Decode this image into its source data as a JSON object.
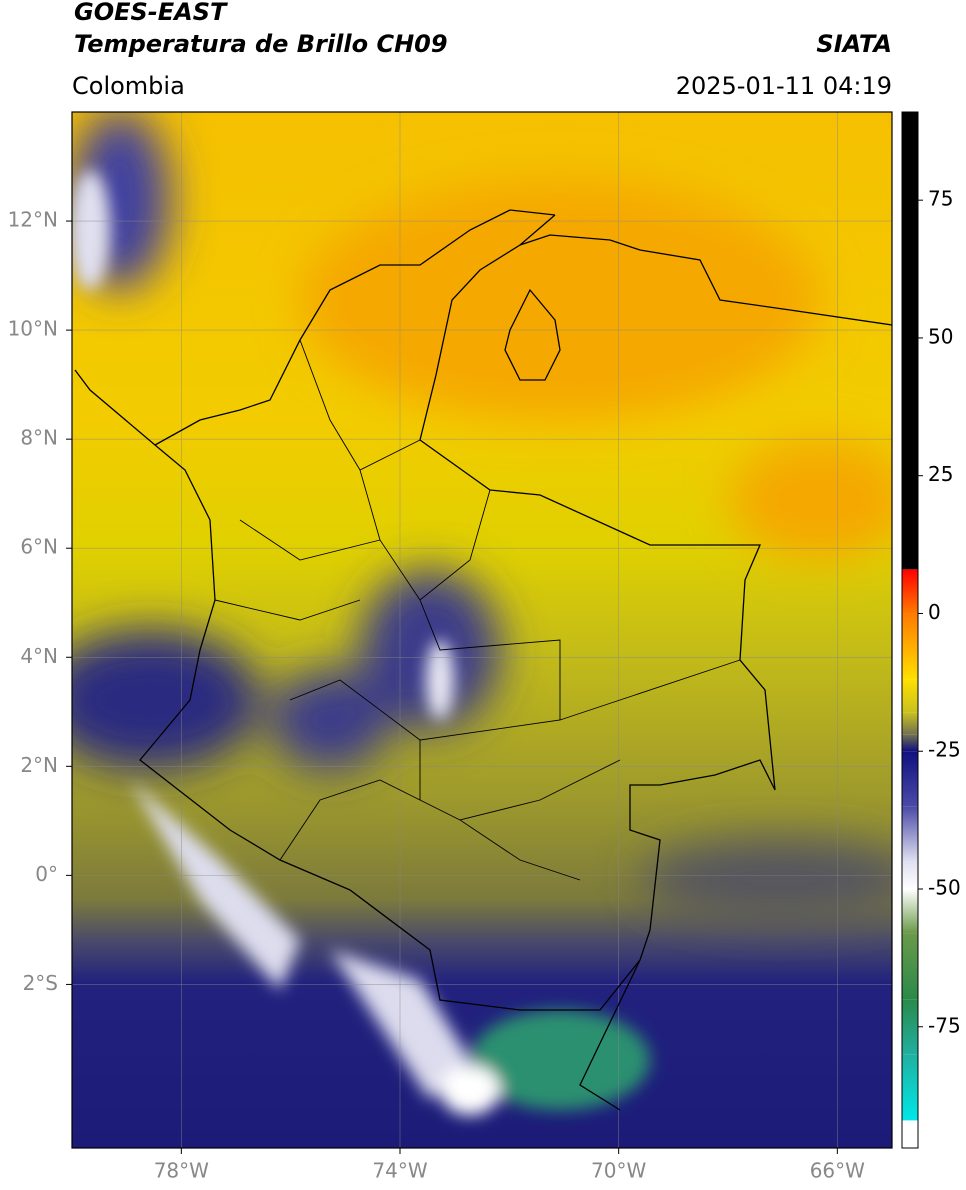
{
  "header": {
    "title_line1": "GOES-EAST",
    "title_line2": "Temperatura de Brillo CH09",
    "source": "SIATA",
    "region": "Colombia",
    "datetime": "2025-01-11 04:19"
  },
  "map": {
    "xlim": [
      -80,
      -65
    ],
    "ylim": [
      -5,
      14
    ],
    "grid": true,
    "xticks": [
      {
        "value": -78,
        "label": "78°W"
      },
      {
        "value": -74,
        "label": "74°W"
      },
      {
        "value": -70,
        "label": "70°W"
      },
      {
        "value": -66,
        "label": "66°W"
      }
    ],
    "yticks": [
      {
        "value": 12,
        "label": "12°N"
      },
      {
        "value": 10,
        "label": "10°N"
      },
      {
        "value": 8,
        "label": "8°N"
      },
      {
        "value": 6,
        "label": "6°N"
      },
      {
        "value": 4,
        "label": "4°N"
      },
      {
        "value": 2,
        "label": "2°N"
      },
      {
        "value": 0,
        "label": "0°"
      },
      {
        "value": -2,
        "label": "2°S"
      }
    ]
  },
  "colorbar": {
    "lim": [
      -97,
      91
    ],
    "ticks": [
      75,
      50,
      25,
      0,
      -25,
      -50,
      -75
    ],
    "colormap": [
      {
        "value": 91,
        "color": "#000000"
      },
      {
        "value": 8,
        "color": "#000000"
      },
      {
        "value": 8,
        "color": "#ff0000"
      },
      {
        "value": 0,
        "color": "#ff7a00"
      },
      {
        "value": -12,
        "color": "#ffe000"
      },
      {
        "value": -18,
        "color": "#c8c020"
      },
      {
        "value": -22,
        "color": "#707050"
      },
      {
        "value": -25,
        "color": "#101080"
      },
      {
        "value": -35,
        "color": "#4a4aa8"
      },
      {
        "value": -45,
        "color": "#e0e0f0"
      },
      {
        "value": -50,
        "color": "#ffffff"
      },
      {
        "value": -58,
        "color": "#6a9a4a"
      },
      {
        "value": -70,
        "color": "#2a8a4a"
      },
      {
        "value": -80,
        "color": "#20b0a0"
      },
      {
        "value": -92,
        "color": "#00e8e8"
      },
      {
        "value": -92,
        "color": "#ffffff"
      },
      {
        "value": -97,
        "color": "#ffffff"
      }
    ]
  }
}
